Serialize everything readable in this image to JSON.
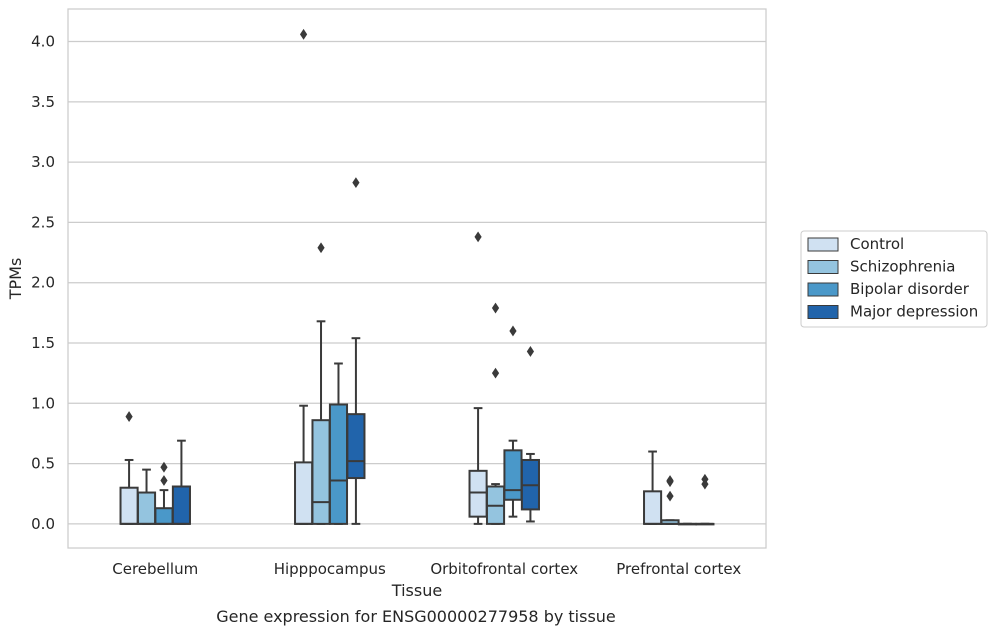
{
  "chart_data": {
    "type": "box",
    "xlabel": "Tissue",
    "ylabel": "TPMs",
    "caption": "Gene expression for ENSG00000277958 by tissue",
    "ylim": [
      -0.2,
      4.27
    ],
    "yticks": [
      "0.0",
      "0.5",
      "1.0",
      "1.5",
      "2.0",
      "2.5",
      "3.0",
      "3.5",
      "4.0"
    ],
    "grid": "horizontal",
    "legend_position": "right",
    "categories": [
      "Cerebellum",
      "Hipppocampus",
      "Orbitofrontal cortex",
      "Prefrontal cortex"
    ],
    "series": [
      {
        "name": "Control",
        "color": "#d0e1f2",
        "boxes": [
          {
            "q1": 0.0,
            "median": 0.0,
            "q3": 0.3,
            "whisker_low": 0.0,
            "whisker_high": 0.53,
            "outliers": [
              0.89
            ]
          },
          {
            "q1": 0.0,
            "median": 0.0,
            "q3": 0.51,
            "whisker_low": 0.0,
            "whisker_high": 0.98,
            "outliers": [
              4.06
            ]
          },
          {
            "q1": 0.06,
            "median": 0.26,
            "q3": 0.44,
            "whisker_low": 0.0,
            "whisker_high": 0.96,
            "outliers": [
              2.38
            ]
          },
          {
            "q1": 0.0,
            "median": 0.0,
            "q3": 0.27,
            "whisker_low": 0.0,
            "whisker_high": 0.6,
            "outliers": []
          }
        ]
      },
      {
        "name": "Schizophrenia",
        "color": "#94c4df",
        "boxes": [
          {
            "q1": 0.0,
            "median": 0.0,
            "q3": 0.26,
            "whisker_low": 0.0,
            "whisker_high": 0.45,
            "outliers": []
          },
          {
            "q1": 0.0,
            "median": 0.18,
            "q3": 0.86,
            "whisker_low": 0.0,
            "whisker_high": 1.68,
            "outliers": [
              2.29
            ]
          },
          {
            "q1": 0.0,
            "median": 0.15,
            "q3": 0.31,
            "whisker_low": 0.0,
            "whisker_high": 0.33,
            "outliers": [
              1.25,
              1.79
            ]
          },
          {
            "q1": 0.0,
            "median": 0.0,
            "q3": 0.03,
            "whisker_low": 0.0,
            "whisker_high": 0.03,
            "outliers": [
              0.23,
              0.35,
              0.36
            ]
          }
        ]
      },
      {
        "name": "Bipolar disorder",
        "color": "#4a98c9",
        "boxes": [
          {
            "q1": 0.0,
            "median": 0.0,
            "q3": 0.13,
            "whisker_low": 0.0,
            "whisker_high": 0.28,
            "outliers": [
              0.36,
              0.47
            ]
          },
          {
            "q1": 0.0,
            "median": 0.36,
            "q3": 0.99,
            "whisker_low": 0.0,
            "whisker_high": 1.33,
            "outliers": []
          },
          {
            "q1": 0.2,
            "median": 0.28,
            "q3": 0.61,
            "whisker_low": 0.06,
            "whisker_high": 0.69,
            "outliers": [
              1.6
            ]
          },
          {
            "q1": 0.0,
            "median": 0.0,
            "q3": 0.0,
            "whisker_low": 0.0,
            "whisker_high": 0.0,
            "outliers": []
          }
        ]
      },
      {
        "name": "Major depression",
        "color": "#2164ab",
        "boxes": [
          {
            "q1": 0.0,
            "median": 0.0,
            "q3": 0.31,
            "whisker_low": 0.0,
            "whisker_high": 0.69,
            "outliers": []
          },
          {
            "q1": 0.38,
            "median": 0.52,
            "q3": 0.91,
            "whisker_low": 0.0,
            "whisker_high": 1.54,
            "outliers": [
              2.83
            ]
          },
          {
            "q1": 0.12,
            "median": 0.32,
            "q3": 0.53,
            "whisker_low": 0.02,
            "whisker_high": 0.58,
            "outliers": [
              1.43
            ]
          },
          {
            "q1": 0.0,
            "median": 0.0,
            "q3": 0.0,
            "whisker_low": 0.0,
            "whisker_high": 0.0,
            "outliers": [
              0.33,
              0.37
            ]
          }
        ]
      }
    ]
  }
}
